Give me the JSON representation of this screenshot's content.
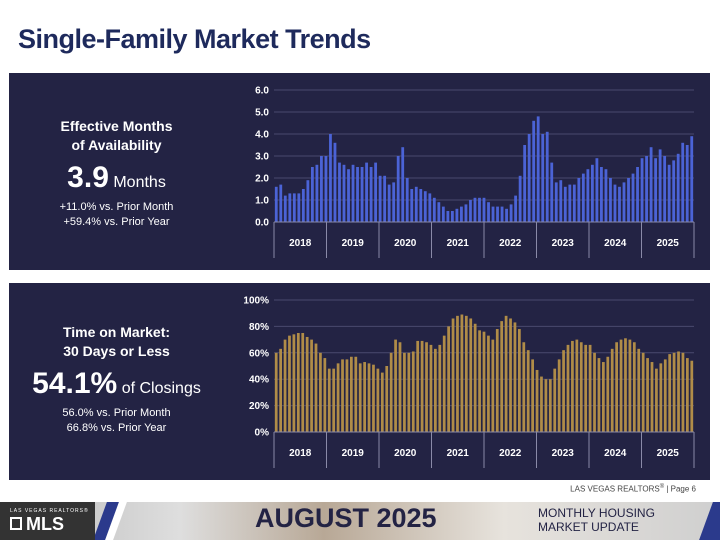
{
  "page": {
    "title": "Single-Family Market Trends",
    "credit": "LAS VEGAS REALTORS",
    "credit_reg": "®",
    "credit_page": " | Page 6"
  },
  "panel1": {
    "title_line1": "Effective Months",
    "title_line2": "of Availability",
    "big_value": "3.9",
    "big_unit": "Months",
    "sub1": "+11.0% vs. Prior Month",
    "sub2": "+59.4% vs. Prior Year"
  },
  "panel2": {
    "title_line1": "Time on Market:",
    "title_line2": "30 Days or Less",
    "big_value": "54.1%",
    "big_unit": "of Closings",
    "sub1": "56.0% vs. Prior Month",
    "sub2": "66.8% vs. Prior Year"
  },
  "chart_data": [
    {
      "type": "bar",
      "title": "",
      "xlabel": "",
      "ylabel": "",
      "ylim": [
        0,
        6
      ],
      "yticks": [
        "0.0",
        "1.0",
        "2.0",
        "3.0",
        "4.0",
        "5.0",
        "6.0"
      ],
      "year_labels": [
        "2018",
        "2019",
        "2020",
        "2021",
        "2022",
        "2023",
        "2024",
        "2025"
      ],
      "bar_color": "#4b63d6",
      "grid": true,
      "values": [
        1.6,
        1.7,
        1.2,
        1.3,
        1.3,
        1.3,
        1.5,
        1.9,
        2.5,
        2.6,
        3.0,
        3.0,
        4.0,
        3.6,
        2.7,
        2.6,
        2.4,
        2.6,
        2.5,
        2.5,
        2.7,
        2.5,
        2.7,
        2.1,
        2.1,
        1.7,
        1.8,
        3.0,
        3.4,
        2.0,
        1.5,
        1.6,
        1.5,
        1.4,
        1.3,
        1.1,
        0.9,
        0.7,
        0.5,
        0.5,
        0.6,
        0.7,
        0.8,
        1.0,
        1.1,
        1.1,
        1.1,
        0.9,
        0.7,
        0.7,
        0.7,
        0.6,
        0.8,
        1.2,
        2.1,
        3.5,
        4.0,
        4.6,
        4.8,
        4.0,
        4.1,
        2.7,
        1.8,
        1.9,
        1.6,
        1.7,
        1.7,
        2.0,
        2.2,
        2.4,
        2.6,
        2.9,
        2.5,
        2.4,
        2.0,
        1.7,
        1.6,
        1.8,
        2.0,
        2.2,
        2.5,
        2.9,
        3.0,
        3.4,
        2.9,
        3.3,
        3.0,
        2.6,
        2.8,
        3.1,
        3.6,
        3.5,
        3.9
      ]
    },
    {
      "type": "bar",
      "title": "",
      "xlabel": "",
      "ylabel": "",
      "ylim": [
        0,
        100
      ],
      "yticks": [
        "0%",
        "20%",
        "40%",
        "60%",
        "80%",
        "100%"
      ],
      "year_labels": [
        "2018",
        "2019",
        "2020",
        "2021",
        "2022",
        "2023",
        "2024",
        "2025"
      ],
      "bar_color": "#b08c48",
      "grid": true,
      "values": [
        60,
        63,
        70,
        73,
        74,
        75,
        75,
        72,
        70,
        67,
        60,
        56,
        48,
        48,
        52,
        55,
        55,
        57,
        57,
        52,
        53,
        52,
        51,
        48,
        45,
        50,
        60,
        70,
        68,
        60,
        60,
        61,
        69,
        69,
        68,
        66,
        63,
        66,
        73,
        80,
        86,
        88,
        89,
        88,
        86,
        82,
        77,
        76,
        73,
        70,
        78,
        84,
        88,
        86,
        83,
        78,
        68,
        62,
        55,
        47,
        42,
        40,
        40,
        48,
        55,
        62,
        66,
        69,
        70,
        68,
        66,
        66,
        60,
        56,
        53,
        57,
        63,
        68,
        70,
        71,
        70,
        68,
        63,
        60,
        56,
        53,
        48,
        52,
        55,
        59,
        60,
        61,
        60,
        56,
        54
      ]
    }
  ],
  "footer": {
    "logo_top": "LAS VEGAS REALTORS®",
    "logo_text": "MLS",
    "month": "AUGUST 2025",
    "sub1": "MONTHLY HOUSING",
    "sub2": "MARKET UPDATE"
  }
}
